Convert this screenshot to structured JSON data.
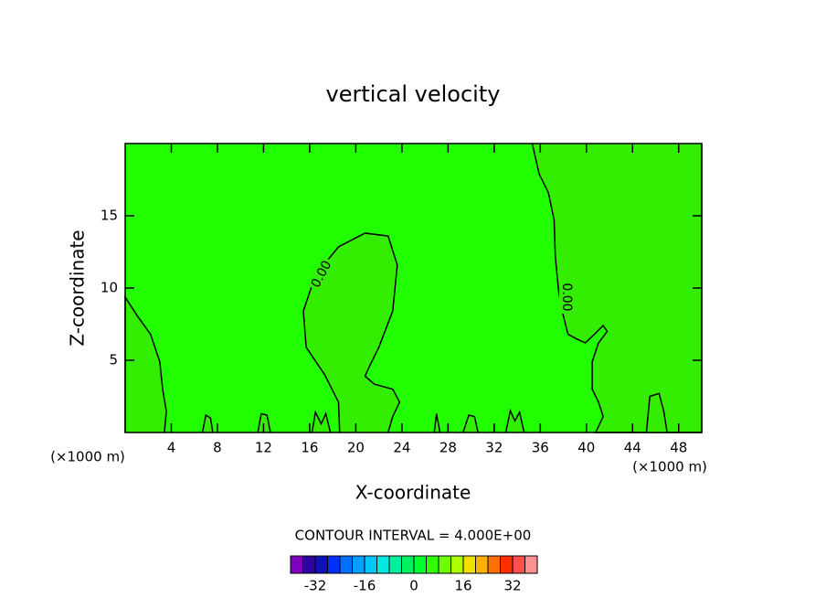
{
  "chart_data": {
    "type": "contour",
    "title": "vertical velocity",
    "x_label": "X-coordinate",
    "y_label": "Z-coordinate",
    "x_unit_label": "(×1000 m)",
    "y_unit_label": "(×1000 m)",
    "xlim": [
      0,
      50
    ],
    "ylim": [
      0,
      20
    ],
    "xticks": [
      4,
      8,
      12,
      16,
      20,
      24,
      28,
      32,
      36,
      40,
      44,
      48
    ],
    "yticks": [
      5,
      10,
      15
    ],
    "background_color": "#22ff00",
    "contours": [
      {
        "fill": "#33ee00",
        "x": [
          0,
          0,
          1.03,
          2.2,
          3.0,
          3.25,
          3.57,
          3.4
        ],
        "z": [
          0,
          9.37,
          8.1,
          6.8,
          4.9,
          3.0,
          1.46,
          0
        ]
      },
      {
        "fill": "#33ee00",
        "label": "0.00",
        "x": [
          18.6,
          18.5,
          17.3,
          15.7,
          15.45,
          16.5,
          18.5,
          20.8,
          22.8,
          23.6,
          23.2,
          22.0,
          21.2,
          20.8,
          21.6,
          23.2,
          23.8,
          23.2,
          22.8
        ],
        "z": [
          0,
          2.1,
          4.0,
          5.9,
          8.4,
          10.9,
          12.85,
          13.8,
          13.6,
          11.6,
          8.4,
          5.9,
          4.6,
          3.9,
          3.35,
          3.0,
          2.1,
          1.1,
          0
        ]
      },
      {
        "fill": "#33ee00",
        "label": "0.00",
        "x": [
          35.3,
          35.9,
          36.7,
          37.2,
          37.3,
          37.6,
          37.9,
          38.4,
          39.1,
          39.9,
          40.7,
          41.45,
          41.8,
          41.05,
          40.5,
          40.5,
          41.05,
          41.45,
          40.8,
          50,
          50
        ],
        "z": [
          20,
          17.9,
          16.6,
          14.7,
          12.2,
          9.7,
          8.4,
          6.8,
          6.5,
          6.2,
          6.8,
          7.4,
          7.0,
          6.2,
          4.9,
          3.0,
          2.1,
          1.1,
          0,
          0,
          20
        ]
      },
      {
        "fill": "#33ee00",
        "x": [
          6.7,
          7.0,
          7.4,
          7.6
        ],
        "z": [
          0,
          1.2,
          1.0,
          0
        ]
      },
      {
        "fill": "#33ee00",
        "x": [
          11.5,
          11.8,
          12.3,
          12.6
        ],
        "z": [
          0,
          1.3,
          1.2,
          0
        ]
      },
      {
        "fill": "#33ee00",
        "x": [
          16.2,
          16.5,
          17.0,
          17.4,
          17.8
        ],
        "z": [
          0,
          1.4,
          0.6,
          1.3,
          0
        ]
      },
      {
        "fill": "#33ee00",
        "x": [
          26.8,
          27.0,
          27.3
        ],
        "z": [
          0,
          1.3,
          0
        ]
      },
      {
        "fill": "#33ee00",
        "x": [
          29.3,
          29.8,
          30.3,
          30.6
        ],
        "z": [
          0,
          1.2,
          1.1,
          0
        ]
      },
      {
        "fill": "#33ee00",
        "x": [
          33.0,
          33.4,
          33.8,
          34.2,
          34.6
        ],
        "z": [
          0,
          1.5,
          0.8,
          1.4,
          0
        ]
      },
      {
        "fill": "#33ee00",
        "x": [
          45.2,
          45.5,
          46.3,
          46.7,
          47.0
        ],
        "z": [
          0,
          2.5,
          2.7,
          1.5,
          0
        ]
      }
    ],
    "contour_interval_label": "CONTOUR INTERVAL = 4.000E+00",
    "colorbar": {
      "bounds": [
        -40,
        -36,
        -32,
        -28,
        -24,
        -20,
        -16,
        -12,
        -8,
        -4,
        0,
        4,
        8,
        12,
        16,
        20,
        24,
        28,
        32,
        36,
        40
      ],
      "colors": [
        "#8000c0",
        "#3000a0",
        "#1010c0",
        "#0030ff",
        "#0070ff",
        "#00a0ff",
        "#00c8ff",
        "#00e8e0",
        "#00f0a0",
        "#00f060",
        "#00ff30",
        "#30ff00",
        "#70ff00",
        "#b0ff00",
        "#f0e000",
        "#ffb000",
        "#ff7000",
        "#ff3000",
        "#ff5050",
        "#ff9090"
      ],
      "ticks": [
        -32,
        -16,
        0,
        16,
        32
      ]
    }
  }
}
